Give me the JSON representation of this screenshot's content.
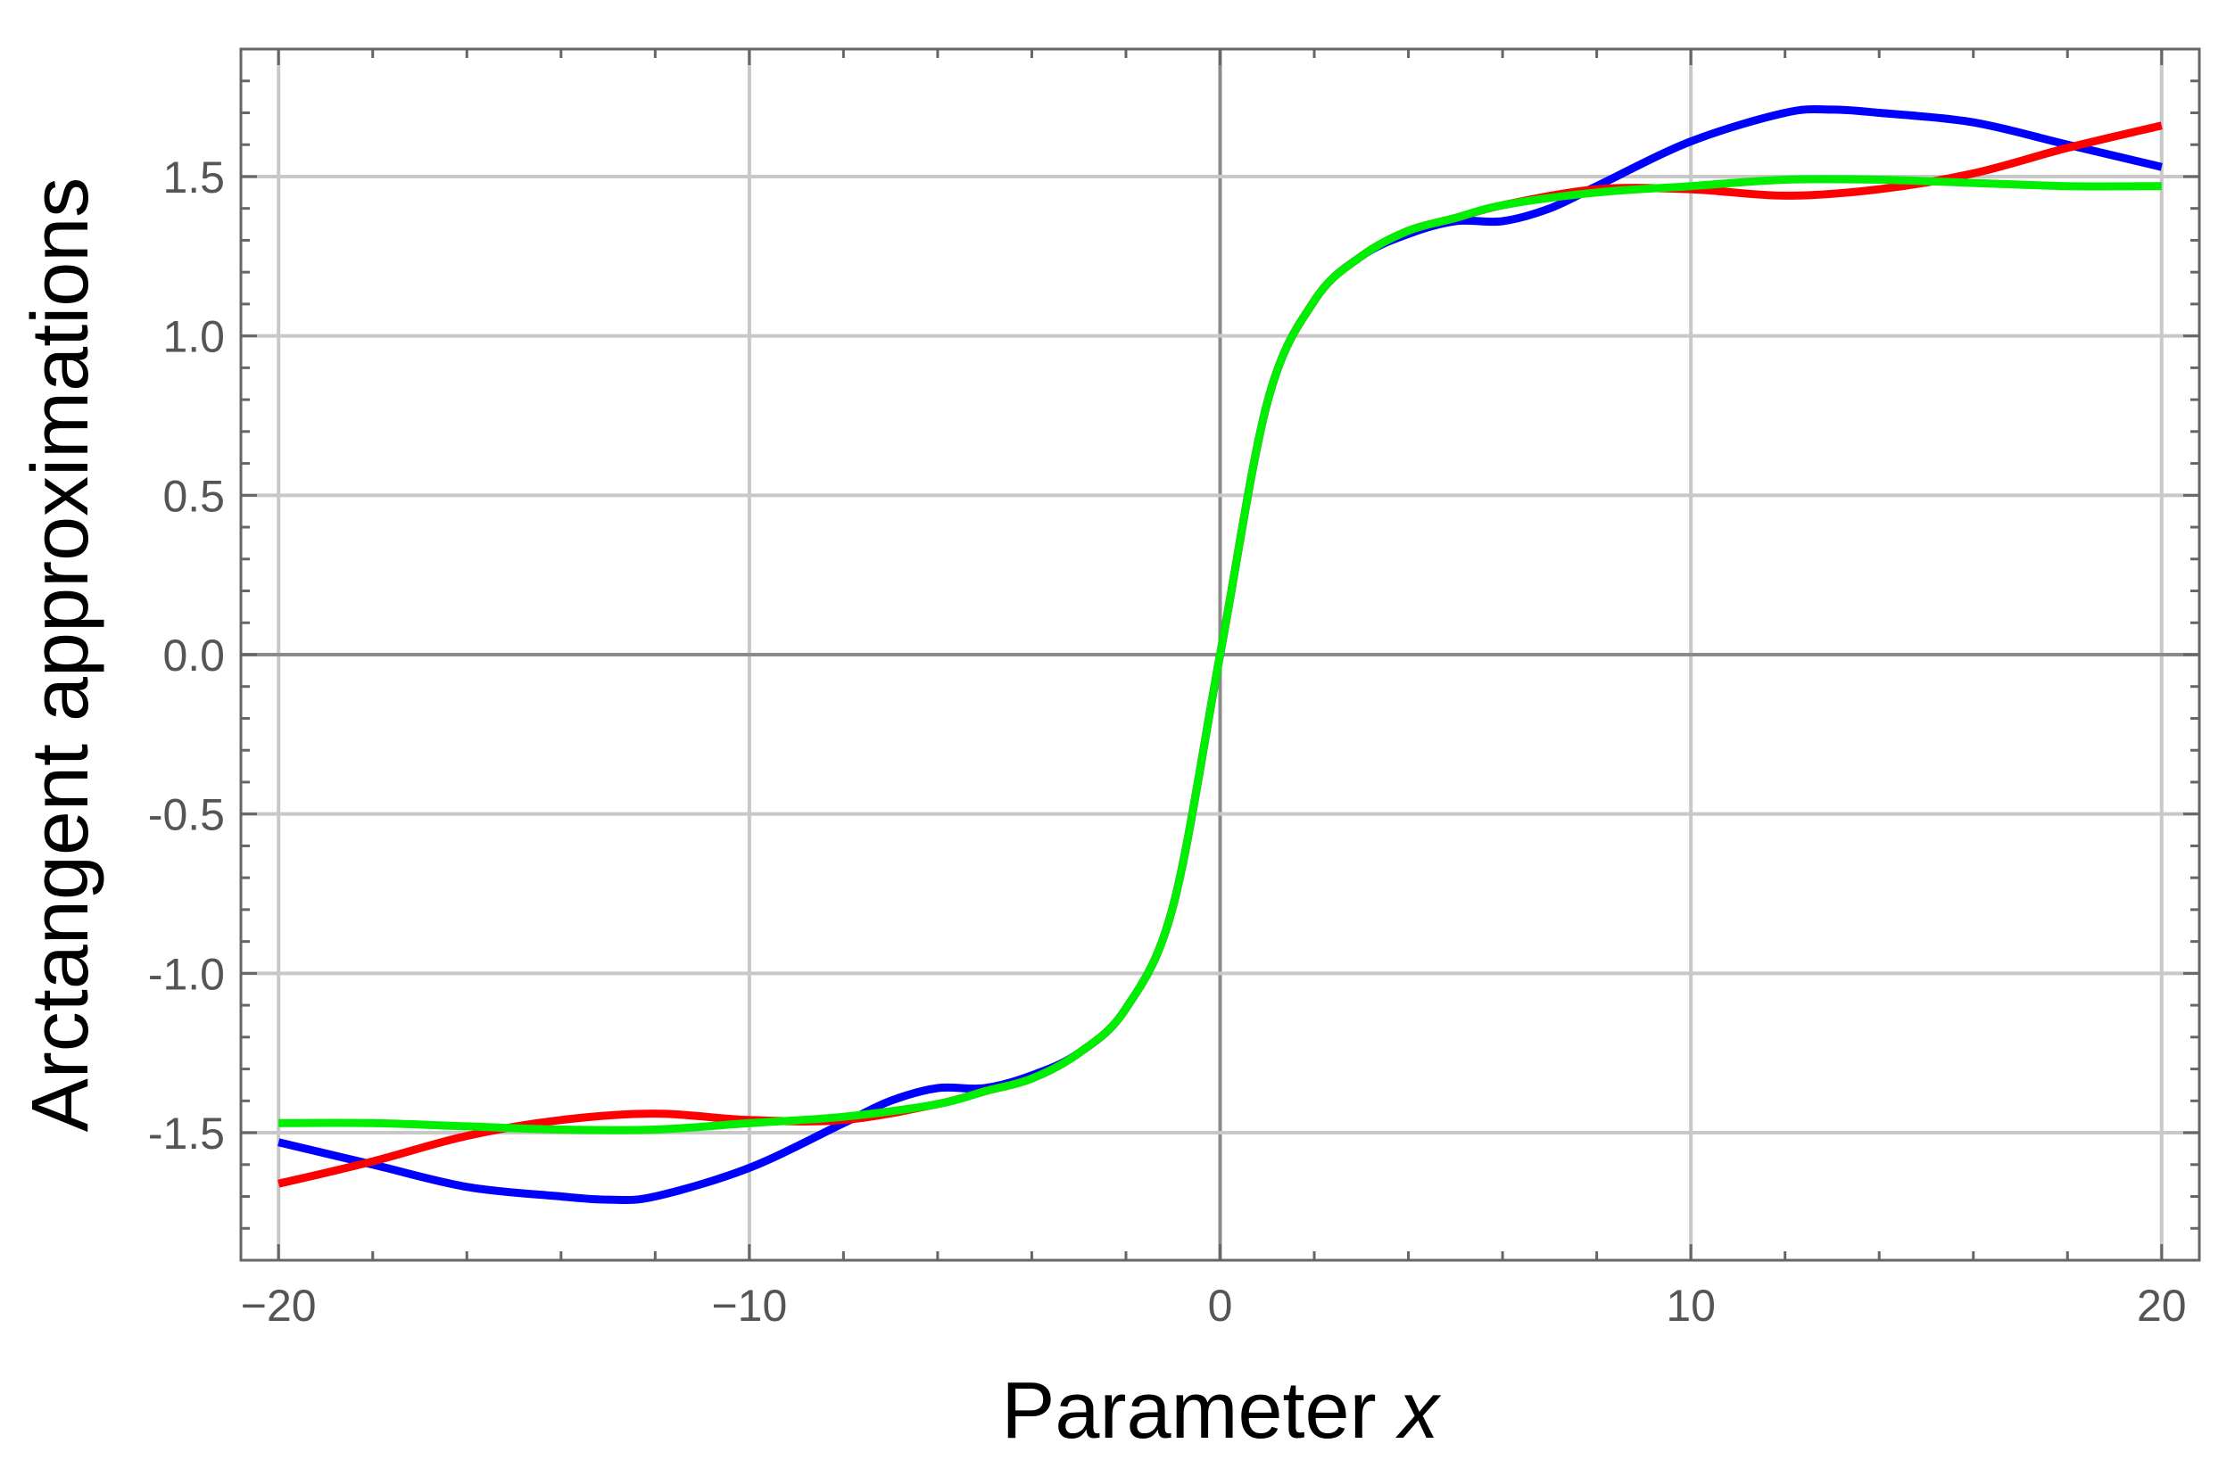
{
  "chart_data": {
    "type": "line",
    "title": "",
    "xlabel_main": "Parameter ",
    "xlabel_var": "x",
    "ylabel": "Arctangent approximations",
    "xlim": [
      -20.8,
      20.8
    ],
    "ylim": [
      -1.9,
      1.9
    ],
    "x_ticks": [
      -20,
      -10,
      0,
      10,
      20
    ],
    "x_tick_labels": [
      "−20",
      "−10",
      "0",
      "10",
      "20"
    ],
    "y_ticks": [
      -1.5,
      -1.0,
      -0.5,
      0.0,
      0.5,
      1.0,
      1.5
    ],
    "y_tick_labels": [
      "-1.5",
      "-1.0",
      "-0.5",
      "0.0",
      "0.5",
      "1.0",
      "1.5"
    ],
    "grid": true,
    "colors": {
      "blue": "#0000ff",
      "red": "#ff0000",
      "green": "#00ee00",
      "grid": "#c8c8c8",
      "zero_line": "#8a8a8a",
      "frame": "#666666"
    },
    "series": [
      {
        "color": "#0000ff",
        "x": [
          -20,
          -18,
          -16,
          -14,
          -13,
          -12,
          -10,
          -8,
          -7,
          -6,
          -5,
          -4,
          -3,
          -2,
          -1,
          0,
          1,
          2,
          3,
          4,
          5,
          6,
          7,
          8,
          10,
          12,
          13,
          14,
          16,
          18,
          20
        ],
        "y": [
          -1.53,
          -1.6,
          -1.67,
          -1.7,
          -1.71,
          -1.7,
          -1.61,
          -1.47,
          -1.4,
          -1.36,
          -1.36,
          -1.32,
          -1.25,
          -1.11,
          -0.79,
          0.0,
          0.79,
          1.11,
          1.25,
          1.32,
          1.36,
          1.36,
          1.4,
          1.47,
          1.61,
          1.7,
          1.71,
          1.7,
          1.67,
          1.6,
          1.53
        ]
      },
      {
        "color": "#ff0000",
        "x": [
          -20,
          -18,
          -16,
          -14,
          -12,
          -10,
          -8,
          -6,
          -5,
          -4,
          -3,
          -2,
          -1,
          0,
          1,
          2,
          3,
          4,
          5,
          6,
          8,
          10,
          12,
          14,
          16,
          18,
          20
        ],
        "y": [
          -1.66,
          -1.59,
          -1.51,
          -1.46,
          -1.44,
          -1.46,
          -1.46,
          -1.41,
          -1.37,
          -1.33,
          -1.25,
          -1.11,
          -0.79,
          0.0,
          0.79,
          1.11,
          1.25,
          1.33,
          1.37,
          1.41,
          1.46,
          1.46,
          1.44,
          1.46,
          1.51,
          1.59,
          1.66
        ]
      },
      {
        "color": "#00ee00",
        "x": [
          -20,
          -18,
          -16,
          -14,
          -12,
          -10,
          -8,
          -6,
          -5,
          -4,
          -3,
          -2,
          -1,
          0,
          1,
          2,
          3,
          4,
          5,
          6,
          8,
          10,
          12,
          14,
          16,
          18,
          20
        ],
        "y": [
          -1.47,
          -1.47,
          -1.48,
          -1.49,
          -1.49,
          -1.47,
          -1.45,
          -1.41,
          -1.37,
          -1.33,
          -1.25,
          -1.11,
          -0.79,
          0.0,
          0.79,
          1.11,
          1.25,
          1.33,
          1.37,
          1.41,
          1.45,
          1.47,
          1.49,
          1.49,
          1.48,
          1.47,
          1.47
        ]
      }
    ]
  }
}
